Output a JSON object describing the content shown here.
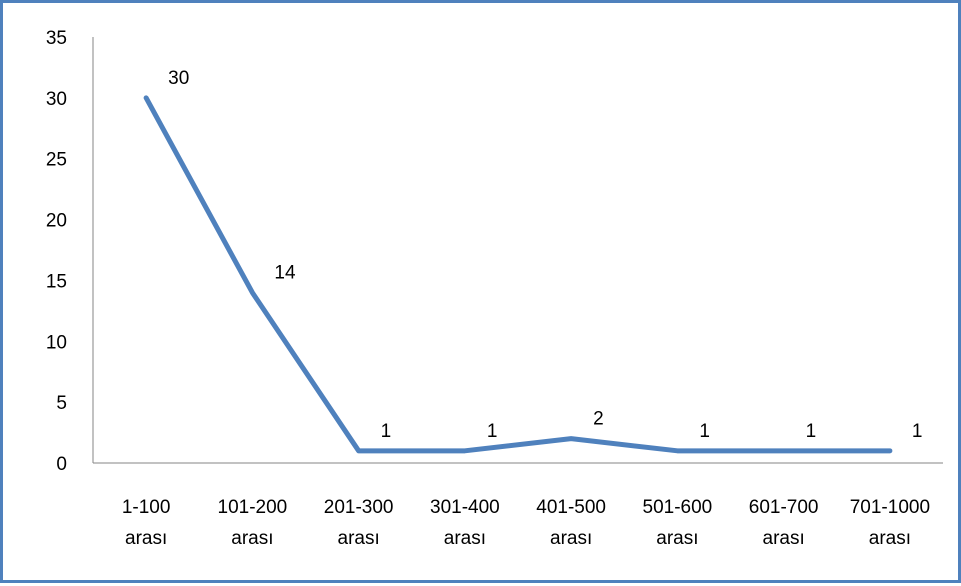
{
  "chart_data": {
    "type": "line",
    "title": "",
    "xlabel": "",
    "ylabel": "",
    "categories": [
      [
        "1-100",
        "arası"
      ],
      [
        "101-200",
        "arası"
      ],
      [
        "201-300",
        "arası"
      ],
      [
        "301-400",
        "arası"
      ],
      [
        "401-500",
        "arası"
      ],
      [
        "501-600",
        "arası"
      ],
      [
        "601-700",
        "arası"
      ],
      [
        "701-1000",
        "arası"
      ]
    ],
    "series": [
      {
        "values": [
          30,
          14,
          1,
          1,
          2,
          1,
          1,
          1
        ],
        "color": "#4F81BD"
      }
    ],
    "data_labels": [
      "30",
      "14",
      "1",
      "1",
      "2",
      "1",
      "1",
      "1"
    ],
    "ylim": [
      0,
      35
    ],
    "yticks": [
      0,
      5,
      10,
      15,
      20,
      25,
      30,
      35
    ],
    "ytick_labels": [
      "0",
      "5",
      "10",
      "15",
      "20",
      "25",
      "30",
      "35"
    ],
    "grid": false,
    "legend": "none",
    "colors": {
      "border": "#4F81BD",
      "line": "#4F81BD",
      "axis": "#868686"
    }
  }
}
